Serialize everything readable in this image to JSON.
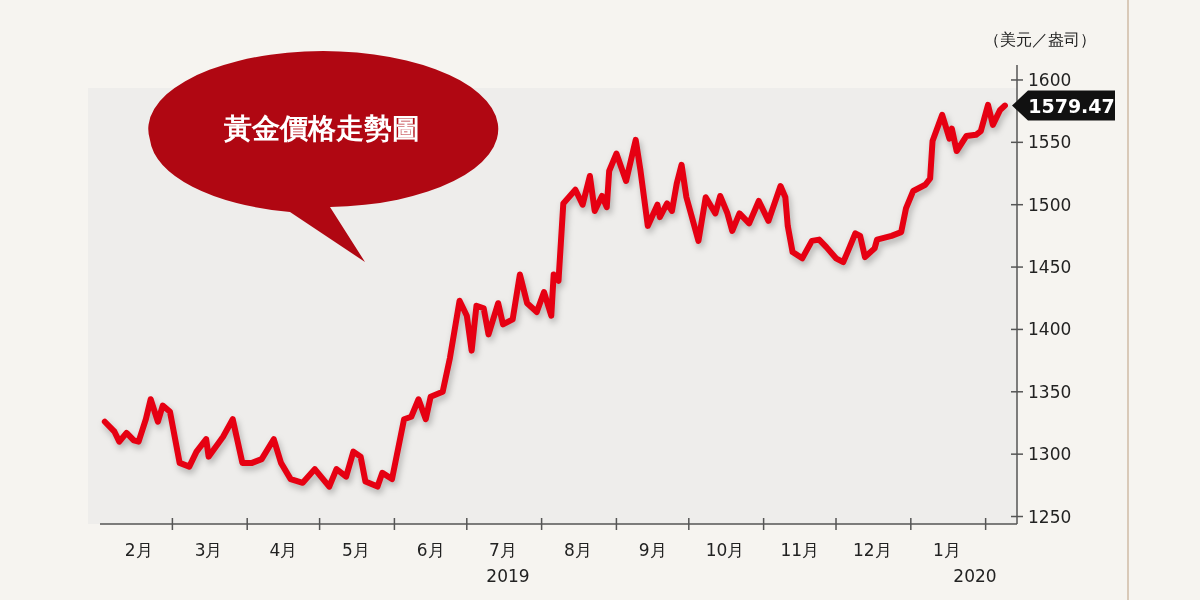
{
  "chart_data": {
    "type": "line",
    "title": "黃金價格走勢圖",
    "ylabel": "（美元／盎司）",
    "x": [
      "2019-02-01",
      "2019-02-05",
      "2019-02-07",
      "2019-02-10",
      "2019-02-13",
      "2019-02-15",
      "2019-02-18",
      "2019-02-20",
      "2019-02-23",
      "2019-02-25",
      "2019-02-28",
      "2019-03-04",
      "2019-03-08",
      "2019-03-11",
      "2019-03-15",
      "2019-03-16",
      "2019-03-22",
      "2019-03-26",
      "2019-03-30",
      "2019-04-03",
      "2019-04-07",
      "2019-04-12",
      "2019-04-15",
      "2019-04-19",
      "2019-04-24",
      "2019-04-29",
      "2019-05-05",
      "2019-05-08",
      "2019-05-12",
      "2019-05-15",
      "2019-05-18",
      "2019-05-20",
      "2019-05-25",
      "2019-05-27",
      "2019-05-31",
      "2019-06-05",
      "2019-06-08",
      "2019-06-11",
      "2019-06-14",
      "2019-06-16",
      "2019-06-21",
      "2019-06-24",
      "2019-06-28",
      "2019-07-01",
      "2019-07-03",
      "2019-07-05",
      "2019-07-08",
      "2019-07-10",
      "2019-07-14",
      "2019-07-16",
      "2019-07-20",
      "2019-07-23",
      "2019-07-26",
      "2019-07-30",
      "2019-08-02",
      "2019-08-05",
      "2019-08-06",
      "2019-08-08",
      "2019-08-10",
      "2019-08-15",
      "2019-08-18",
      "2019-08-21",
      "2019-08-23",
      "2019-08-26",
      "2019-08-28",
      "2019-08-29",
      "2019-09-01",
      "2019-09-05",
      "2019-09-09",
      "2019-09-11",
      "2019-09-14",
      "2019-09-18",
      "2019-09-19",
      "2019-09-22",
      "2019-09-24",
      "2019-09-26",
      "2019-09-28",
      "2019-09-30",
      "2019-10-05",
      "2019-10-08",
      "2019-10-12",
      "2019-10-14",
      "2019-10-17",
      "2019-10-19",
      "2019-10-22",
      "2019-10-26",
      "2019-10-30",
      "2019-11-03",
      "2019-11-08",
      "2019-11-10",
      "2019-11-11",
      "2019-11-13",
      "2019-11-17",
      "2019-11-21",
      "2019-11-24",
      "2019-11-27",
      "2019-12-01",
      "2019-12-04",
      "2019-12-06",
      "2019-12-09",
      "2019-12-11",
      "2019-12-13",
      "2019-12-17",
      "2019-12-18",
      "2019-12-24",
      "2019-12-28",
      "2019-12-30",
      "2020-01-02",
      "2020-01-07",
      "2020-01-09",
      "2020-01-10",
      "2020-01-14",
      "2020-01-17",
      "2020-01-18",
      "2020-01-20",
      "2020-01-24",
      "2020-01-28",
      "2020-01-30",
      "2020-02-02",
      "2020-02-04",
      "2020-02-07",
      "2020-02-09"
    ],
    "series": [
      {
        "color": "#e60012",
        "values": [
          1326,
          1318,
          1310,
          1317,
          1311,
          1310,
          1328,
          1344,
          1326,
          1339,
          1334,
          1293,
          1290,
          1302,
          1312,
          1298,
          1314,
          1328,
          1293,
          1293,
          1296,
          1312,
          1293,
          1280,
          1277,
          1288,
          1274,
          1288,
          1282,
          1302,
          1298,
          1278,
          1274,
          1285,
          1280,
          1328,
          1330,
          1344,
          1328,
          1346,
          1350,
          1377,
          1423,
          1411,
          1383,
          1419,
          1417,
          1396,
          1421,
          1404,
          1408,
          1444,
          1421,
          1414,
          1430,
          1411,
          1444,
          1439,
          1501,
          1512,
          1500,
          1523,
          1495,
          1507,
          1498,
          1527,
          1541,
          1519,
          1552,
          1527,
          1483,
          1500,
          1490,
          1501,
          1495,
          1517,
          1532,
          1506,
          1471,
          1506,
          1493,
          1507,
          1493,
          1479,
          1493,
          1485,
          1503,
          1487,
          1515,
          1506,
          1483,
          1462,
          1457,
          1471,
          1472,
          1466,
          1457,
          1454,
          1463,
          1477,
          1475,
          1458,
          1465,
          1472,
          1475,
          1478,
          1497,
          1511,
          1516,
          1521,
          1551,
          1572,
          1553,
          1561,
          1543,
          1555,
          1556,
          1559,
          1580,
          1564,
          1576,
          1579.47
        ]
      }
    ],
    "xlim": [
      "2019-01-30",
      "2020-02-14"
    ],
    "xticks": [
      {
        "value": "2019-03-01",
        "label": null
      },
      {
        "value": "2019-04-01",
        "label": null
      },
      {
        "value": "2019-05-01",
        "label": null
      },
      {
        "value": "2019-06-01",
        "label": null
      },
      {
        "value": "2019-07-01",
        "label": null
      },
      {
        "value": "2019-08-01",
        "label": null
      },
      {
        "value": "2019-09-01",
        "label": null
      },
      {
        "value": "2019-10-01",
        "label": null
      },
      {
        "value": "2019-11-01",
        "label": null
      },
      {
        "value": "2019-12-01",
        "label": null
      },
      {
        "value": "2020-01-01",
        "label": null
      },
      {
        "value": "2020-02-01",
        "label": null
      },
      {
        "value": "2019-02-15",
        "label": "2月"
      },
      {
        "value": "2019-03-16",
        "label": "3月"
      },
      {
        "value": "2019-04-16",
        "label": "4月"
      },
      {
        "value": "2019-05-16",
        "label": "5月"
      },
      {
        "value": "2019-06-16",
        "label": "6月"
      },
      {
        "value": "2019-07-16",
        "label": "7月"
      },
      {
        "value": "2019-08-16",
        "label": "8月"
      },
      {
        "value": "2019-09-16",
        "label": "9月"
      },
      {
        "value": "2019-10-16",
        "label": "10月"
      },
      {
        "value": "2019-11-16",
        "label": "11月"
      },
      {
        "value": "2019-12-16",
        "label": "12月"
      },
      {
        "value": "2020-01-16",
        "label": "1月"
      }
    ],
    "ylim": [
      1244,
      1612
    ],
    "yticks": [
      1250,
      1300,
      1350,
      1400,
      1450,
      1500,
      1550,
      1600
    ],
    "annotations": [
      {
        "text": "1579.47",
        "x": "2020-02-09",
        "y": 1579.47
      },
      "2019",
      "2020"
    ],
    "grid": false
  }
}
